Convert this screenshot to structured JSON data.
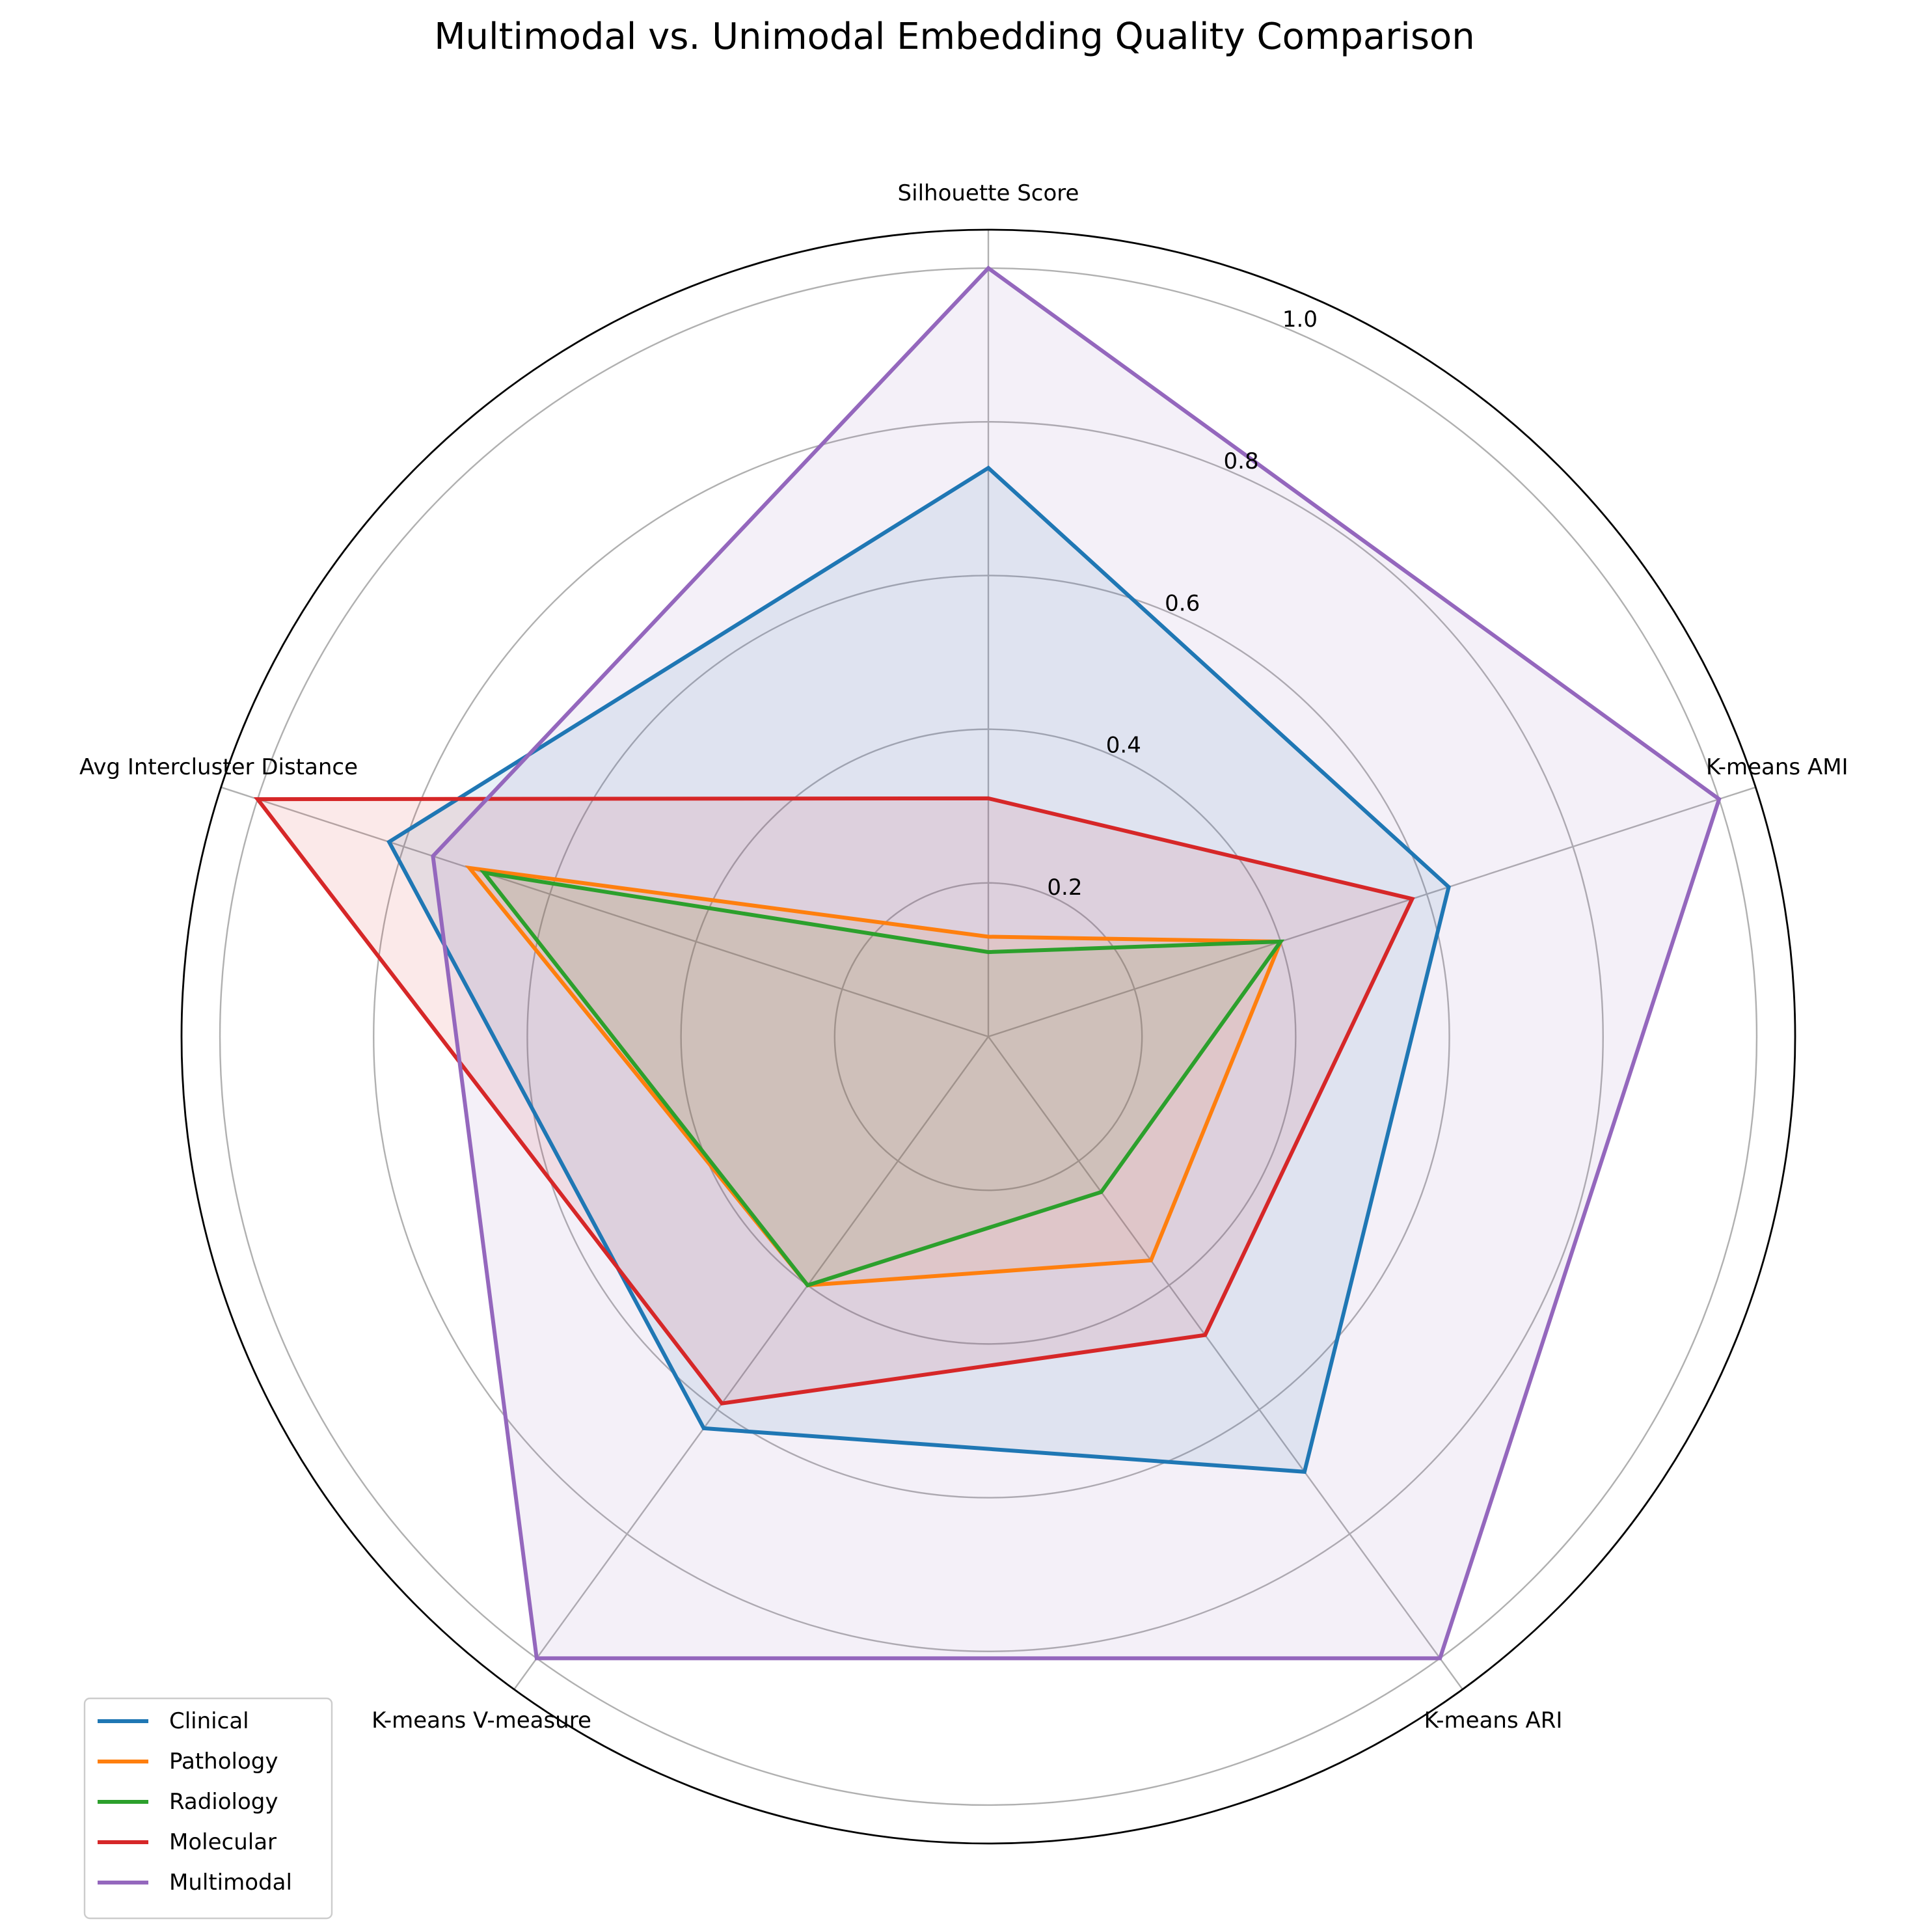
{
  "chart_data": {
    "type": "radar",
    "title": "Multimodal vs. Unimodal Embedding Quality Comparison",
    "axes": [
      "Silhouette Score",
      "K-means AMI",
      "K-means ARI",
      "K-means V-measure",
      "Avg Intercluster Distance"
    ],
    "rlim": [
      0,
      1.05
    ],
    "rticks": [
      0.2,
      0.4,
      0.6,
      0.8,
      1.0
    ],
    "rtick_labels": [
      "0.2",
      "0.4",
      "0.6",
      "0.8",
      "1.0"
    ],
    "grid": true,
    "legend_position": "lower-left",
    "series": [
      {
        "name": "Clinical",
        "color": "#1f77b4",
        "values": [
          0.74,
          0.63,
          0.7,
          0.63,
          0.82
        ]
      },
      {
        "name": "Pathology",
        "color": "#ff7f0e",
        "values": [
          0.13,
          0.4,
          0.36,
          0.4,
          0.71
        ]
      },
      {
        "name": "Radiology",
        "color": "#2ca02c",
        "values": [
          0.11,
          0.4,
          0.25,
          0.4,
          0.69
        ]
      },
      {
        "name": "Molecular",
        "color": "#d62728",
        "values": [
          0.31,
          0.58,
          0.48,
          0.59,
          1.0
        ]
      },
      {
        "name": "Multimodal",
        "color": "#9467bd",
        "values": [
          1.0,
          1.0,
          1.0,
          1.0,
          0.76
        ]
      }
    ]
  }
}
